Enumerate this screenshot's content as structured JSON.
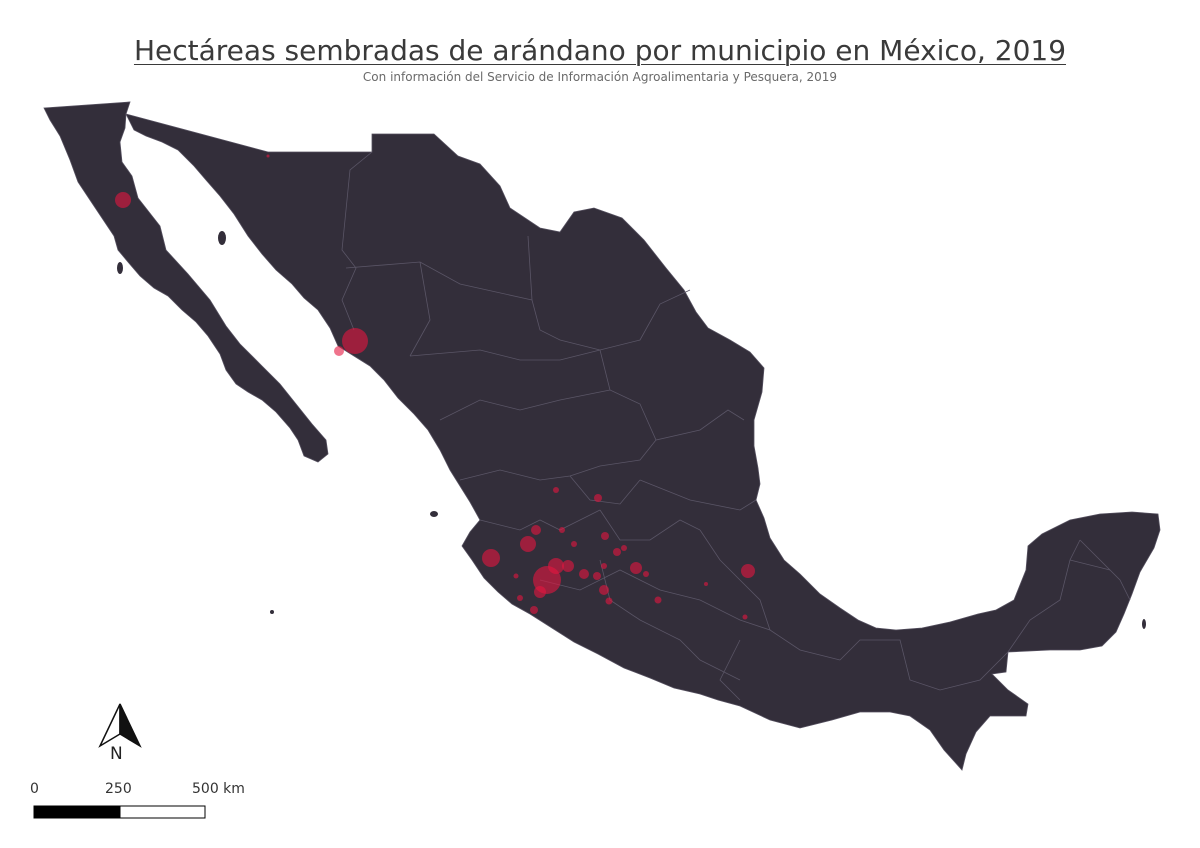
{
  "title": "Hectáreas sembradas de arándano por municipio en México, 2019",
  "subtitle": "Con información del Servicio de Información Agroalimentaria y Pesquera, 2019",
  "map": {
    "land_color": "#332e3a",
    "border_color": "#55505f",
    "point_color": "#e5153f",
    "point_opacity": 0.6,
    "point_relative_sizes": [
      13,
      8,
      5,
      5,
      14,
      6,
      6,
      10,
      9,
      6,
      5,
      6,
      5,
      6,
      4,
      4,
      4,
      5,
      4,
      4,
      5,
      6,
      4,
      4,
      3,
      4,
      3,
      3,
      3,
      9,
      3,
      3
    ]
  },
  "north_arrow": {
    "label": "N"
  },
  "scale_bar": {
    "labels": [
      "0",
      "250",
      "500 km"
    ]
  }
}
